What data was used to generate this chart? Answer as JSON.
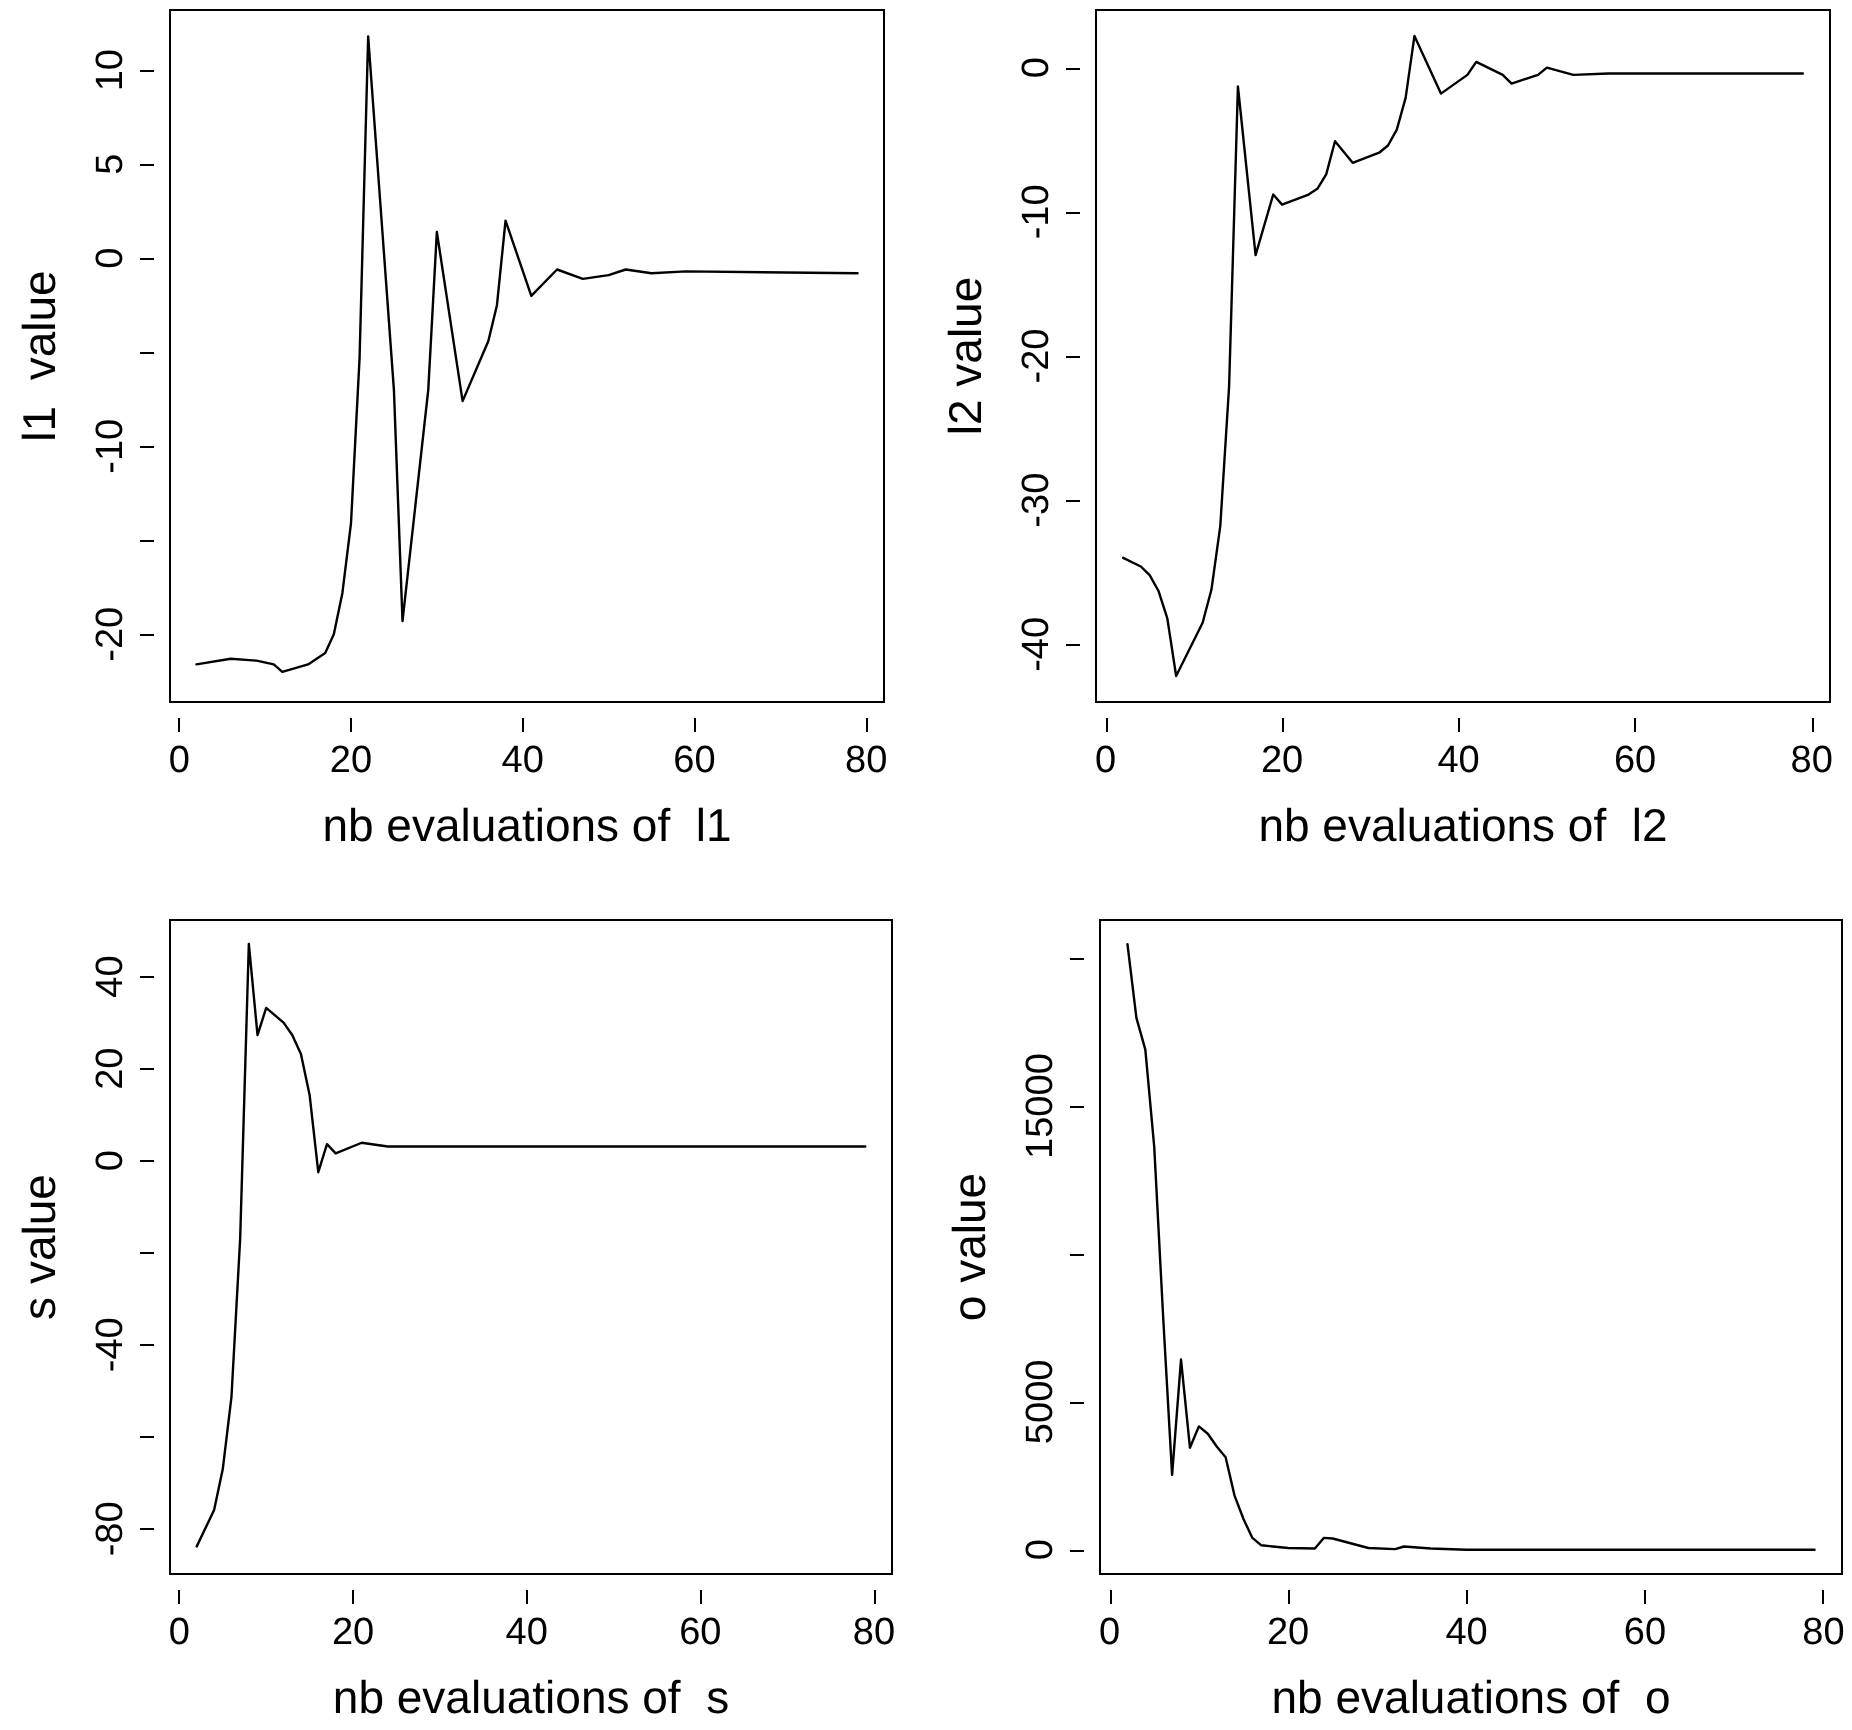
{
  "chart_data": [
    {
      "type": "line",
      "xlabel": "nb evaluations of  l1",
      "ylabel": "l1  value",
      "color": "#000000",
      "marker": "none",
      "line_style": "solid",
      "x": [
        2,
        6,
        9,
        11,
        12,
        15,
        17,
        18,
        19,
        20,
        21,
        22,
        25,
        26,
        29,
        30,
        33,
        36,
        37,
        38,
        41,
        44,
        47,
        50,
        52,
        55,
        59,
        79
      ],
      "values": [
        -21.6,
        -21.3,
        -21.4,
        -21.6,
        -22.0,
        -21.6,
        -21.0,
        -20.0,
        -17.8,
        -14.1,
        -5.3,
        11.8,
        -7.0,
        -19.3,
        -7.0,
        1.4,
        -7.6,
        -4.4,
        -2.5,
        2.0,
        -2.0,
        -0.6,
        -1.1,
        -0.9,
        -0.6,
        -0.8,
        -0.7,
        -0.8
      ],
      "xlim": [
        -1.08,
        82.08
      ],
      "xticks": [
        0,
        20,
        40,
        60,
        80
      ],
      "ylim": [
        -23.6,
        13.2
      ],
      "yticks": [
        -20,
        {
          "value": -15,
          "label": null
        },
        -10,
        {
          "value": -5,
          "label": null
        },
        0,
        5,
        10
      ]
    },
    {
      "type": "line",
      "xlabel": "nb evaluations of  l2",
      "ylabel": "l2 value",
      "color": "#000000",
      "marker": "none",
      "line_style": "solid",
      "x": [
        2,
        4,
        5,
        6,
        7,
        8,
        11,
        12,
        13,
        14,
        15,
        17,
        19,
        20,
        23,
        24,
        25,
        26,
        28,
        31,
        32,
        33,
        34,
        35,
        38,
        41,
        42,
        45,
        46,
        49,
        50,
        53,
        57,
        79
      ],
      "values": [
        -34.0,
        -34.6,
        -35.2,
        -36.3,
        -38.2,
        -42.2,
        -38.5,
        -36.2,
        -31.8,
        -22.1,
        -1.3,
        -13.0,
        -8.8,
        -9.5,
        -8.8,
        -8.4,
        -7.4,
        -5.1,
        -6.6,
        -5.9,
        -5.4,
        -4.3,
        -2.1,
        2.2,
        -1.8,
        -0.5,
        0.4,
        -0.5,
        -1.1,
        -0.5,
        0,
        -0.5,
        -0.4,
        -0.4
      ],
      "xlim": [
        -1.08,
        82.08
      ],
      "xticks": [
        0,
        20,
        40,
        60,
        80
      ],
      "ylim": [
        -44,
        4
      ],
      "yticks": [
        -40,
        -30,
        -20,
        -10,
        0
      ]
    },
    {
      "type": "line",
      "xlabel": "nb evaluations of  s",
      "ylabel": "s value",
      "color": "#000000",
      "marker": "none",
      "line_style": "solid",
      "x": [
        2,
        4,
        5,
        6,
        7,
        8,
        9,
        10,
        12,
        13,
        14,
        15,
        16,
        17,
        18,
        21,
        24,
        79
      ],
      "values": [
        -83.8,
        -75.9,
        -67.0,
        -51.3,
        -17.0,
        47.1,
        27.3,
        33.2,
        30.0,
        27.3,
        23.2,
        14.3,
        -2.5,
        3.6,
        1.6,
        3.9,
        3.1,
        3.1
      ],
      "xlim": [
        -1.08,
        82.08
      ],
      "xticks": [
        0,
        20,
        40,
        60,
        80
      ],
      "ylim": [
        -89.8,
        52.3
      ],
      "yticks": [
        -80,
        {
          "value": -60,
          "label": null
        },
        -40,
        {
          "value": -20,
          "label": null
        },
        0,
        20,
        40
      ]
    },
    {
      "type": "line",
      "xlabel": "nb evaluations of  o",
      "ylabel": "o value",
      "color": "#000000",
      "marker": "none",
      "line_style": "solid",
      "x": [
        2,
        3,
        4,
        5,
        6,
        7,
        8,
        9,
        10,
        11,
        12,
        13,
        14,
        15,
        16,
        17,
        20,
        23,
        24,
        25,
        29,
        32,
        33,
        36,
        40,
        79
      ],
      "values": [
        20470,
        17980,
        16910,
        13610,
        7860,
        2530,
        6430,
        3450,
        4170,
        3920,
        3490,
        3130,
        1830,
        1040,
        400,
        150,
        60,
        40,
        400,
        380,
        60,
        20,
        110,
        40,
        0,
        0
      ],
      "xlim": [
        -1.08,
        82.08
      ],
      "xticks": [
        0,
        20,
        40,
        60,
        80
      ],
      "ylim": [
        -820,
        21290
      ],
      "yticks": [
        0,
        5000,
        {
          "value": 10000,
          "label": null
        },
        15000,
        {
          "value": 20000,
          "label": null
        }
      ]
    }
  ]
}
